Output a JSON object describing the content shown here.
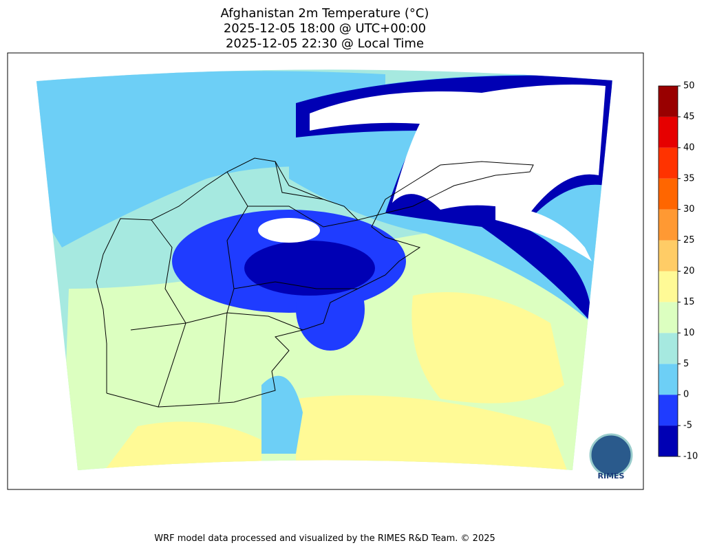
{
  "title": [
    "Afghanistan 2m Temperature (°C)",
    "2025-12-05 18:00 @ UTC+00:00",
    "2025-12-05 22:30 @ Local Time"
  ],
  "colorbar": {
    "ticks": [
      -10,
      -5,
      0,
      5,
      10,
      15,
      20,
      25,
      30,
      35,
      40,
      45,
      50
    ],
    "colors": [
      "#0000b4",
      "#1f3cff",
      "#6dcff6",
      "#a6e9e0",
      "#dcffc0",
      "#fffa96",
      "#ffcc66",
      "#ff9933",
      "#ff6600",
      "#ff3300",
      "#e60000",
      "#990000"
    ]
  },
  "logo": "RIMES",
  "footer": "WRF model data processed and visualized by the RIMES R&D Team. © 2025"
}
